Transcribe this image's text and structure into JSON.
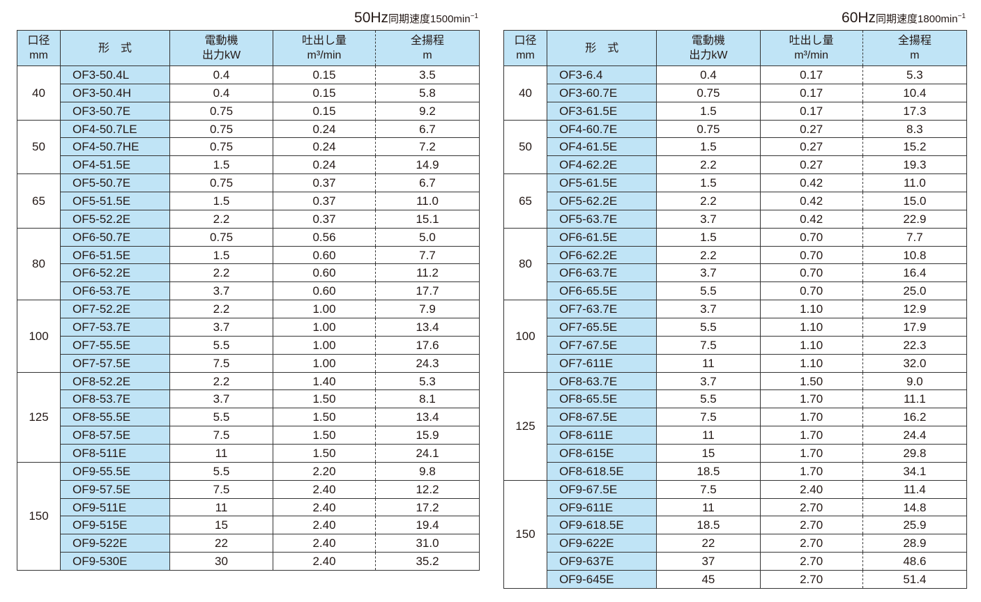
{
  "headers": {
    "size": [
      "口径",
      "mm"
    ],
    "model": "形　式",
    "power": [
      "電動機",
      "出力kW"
    ],
    "flow": [
      "吐出し量",
      "m³/min"
    ],
    "head": [
      "全揚程",
      "m"
    ]
  },
  "tables": [
    {
      "hz": "50Hz",
      "caption": "同期速度1500min",
      "exp": "−1",
      "groups": [
        {
          "size": "40",
          "rows": [
            [
              "OF3-50.4L",
              "0.4",
              "0.15",
              "3.5"
            ],
            [
              "OF3-50.4H",
              "0.4",
              "0.15",
              "5.8"
            ],
            [
              "OF3-50.7E",
              "0.75",
              "0.15",
              "9.2"
            ]
          ]
        },
        {
          "size": "50",
          "rows": [
            [
              "OF4-50.7LE",
              "0.75",
              "0.24",
              "6.7"
            ],
            [
              "OF4-50.7HE",
              "0.75",
              "0.24",
              "7.2"
            ],
            [
              "OF4-51.5E",
              "1.5",
              "0.24",
              "14.9"
            ]
          ]
        },
        {
          "size": "65",
          "rows": [
            [
              "OF5-50.7E",
              "0.75",
              "0.37",
              "6.7"
            ],
            [
              "OF5-51.5E",
              "1.5",
              "0.37",
              "11.0"
            ],
            [
              "OF5-52.2E",
              "2.2",
              "0.37",
              "15.1"
            ]
          ]
        },
        {
          "size": "80",
          "rows": [
            [
              "OF6-50.7E",
              "0.75",
              "0.56",
              "5.0"
            ],
            [
              "OF6-51.5E",
              "1.5",
              "0.60",
              "7.7"
            ],
            [
              "OF6-52.2E",
              "2.2",
              "0.60",
              "11.2"
            ],
            [
              "OF6-53.7E",
              "3.7",
              "0.60",
              "17.7"
            ]
          ]
        },
        {
          "size": "100",
          "rows": [
            [
              "OF7-52.2E",
              "2.2",
              "1.00",
              "7.9"
            ],
            [
              "OF7-53.7E",
              "3.7",
              "1.00",
              "13.4"
            ],
            [
              "OF7-55.5E",
              "5.5",
              "1.00",
              "17.6"
            ],
            [
              "OF7-57.5E",
              "7.5",
              "1.00",
              "24.3"
            ]
          ]
        },
        {
          "size": "125",
          "rows": [
            [
              "OF8-52.2E",
              "2.2",
              "1.40",
              "5.3"
            ],
            [
              "OF8-53.7E",
              "3.7",
              "1.50",
              "8.1"
            ],
            [
              "OF8-55.5E",
              "5.5",
              "1.50",
              "13.4"
            ],
            [
              "OF8-57.5E",
              "7.5",
              "1.50",
              "15.9"
            ],
            [
              "OF8-511E",
              "11",
              "1.50",
              "24.1"
            ]
          ]
        },
        {
          "size": "150",
          "rows": [
            [
              "OF9-55.5E",
              "5.5",
              "2.20",
              "9.8"
            ],
            [
              "OF9-57.5E",
              "7.5",
              "2.40",
              "12.2"
            ],
            [
              "OF9-511E",
              "11",
              "2.40",
              "17.2"
            ],
            [
              "OF9-515E",
              "15",
              "2.40",
              "19.4"
            ],
            [
              "OF9-522E",
              "22",
              "2.40",
              "31.0"
            ],
            [
              "OF9-530E",
              "30",
              "2.40",
              "35.2"
            ]
          ]
        }
      ]
    },
    {
      "hz": "60Hz",
      "caption": "同期速度1800min",
      "exp": "−1",
      "groups": [
        {
          "size": "40",
          "rows": [
            [
              "OF3-6.4",
              "0.4",
              "0.17",
              "5.3"
            ],
            [
              "OF3-60.7E",
              "0.75",
              "0.17",
              "10.4"
            ],
            [
              "OF3-61.5E",
              "1.5",
              "0.17",
              "17.3"
            ]
          ]
        },
        {
          "size": "50",
          "rows": [
            [
              "OF4-60.7E",
              "0.75",
              "0.27",
              "8.3"
            ],
            [
              "OF4-61.5E",
              "1.5",
              "0.27",
              "15.2"
            ],
            [
              "OF4-62.2E",
              "2.2",
              "0.27",
              "19.3"
            ]
          ]
        },
        {
          "size": "65",
          "rows": [
            [
              "OF5-61.5E",
              "1.5",
              "0.42",
              "11.0"
            ],
            [
              "OF5-62.2E",
              "2.2",
              "0.42",
              "15.0"
            ],
            [
              "OF5-63.7E",
              "3.7",
              "0.42",
              "22.9"
            ]
          ]
        },
        {
          "size": "80",
          "rows": [
            [
              "OF6-61.5E",
              "1.5",
              "0.70",
              "7.7"
            ],
            [
              "OF6-62.2E",
              "2.2",
              "0.70",
              "10.8"
            ],
            [
              "OF6-63.7E",
              "3.7",
              "0.70",
              "16.4"
            ],
            [
              "OF6-65.5E",
              "5.5",
              "0.70",
              "25.0"
            ]
          ]
        },
        {
          "size": "100",
          "rows": [
            [
              "OF7-63.7E",
              "3.7",
              "1.10",
              "12.9"
            ],
            [
              "OF7-65.5E",
              "5.5",
              "1.10",
              "17.9"
            ],
            [
              "OF7-67.5E",
              "7.5",
              "1.10",
              "22.3"
            ],
            [
              "OF7-611E",
              "11",
              "1.10",
              "32.0"
            ]
          ]
        },
        {
          "size": "125",
          "rows": [
            [
              "OF8-63.7E",
              "3.7",
              "1.50",
              "9.0"
            ],
            [
              "OF8-65.5E",
              "5.5",
              "1.70",
              "11.1"
            ],
            [
              "OF8-67.5E",
              "7.5",
              "1.70",
              "16.2"
            ],
            [
              "OF8-611E",
              "11",
              "1.70",
              "24.4"
            ],
            [
              "OF8-615E",
              "15",
              "1.70",
              "29.8"
            ],
            [
              "OF8-618.5E",
              "18.5",
              "1.70",
              "34.1"
            ]
          ]
        },
        {
          "size": "150",
          "rows": [
            [
              "OF9-67.5E",
              "7.5",
              "2.40",
              "11.4"
            ],
            [
              "OF9-611E",
              "11",
              "2.70",
              "14.8"
            ],
            [
              "OF9-618.5E",
              "18.5",
              "2.70",
              "25.9"
            ],
            [
              "OF9-622E",
              "22",
              "2.70",
              "28.9"
            ],
            [
              "OF9-637E",
              "37",
              "2.70",
              "48.6"
            ],
            [
              "OF9-645E",
              "45",
              "2.70",
              "51.4"
            ]
          ]
        }
      ]
    }
  ],
  "colors": {
    "header_bg": "#c0e4f6",
    "border": "#333333"
  }
}
